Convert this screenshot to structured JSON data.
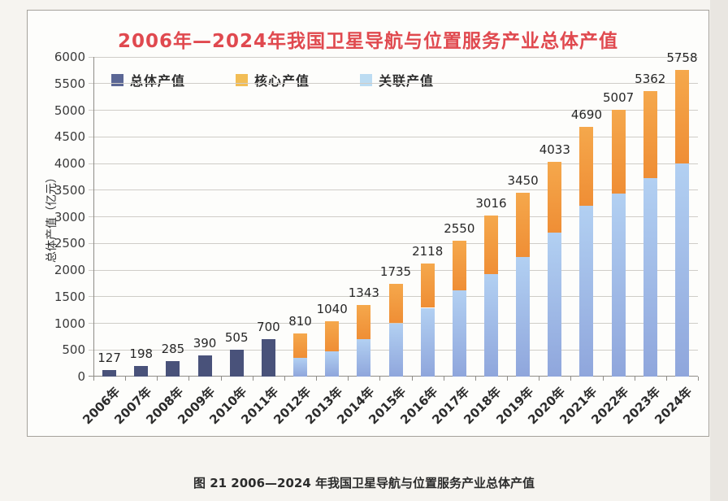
{
  "caption": "图 21  2006—2024 年我国卫星导航与位置服务产业总体产值",
  "chart_data": {
    "type": "bar",
    "subtype": "stacked",
    "title": "2006年—2024年我国卫星导航与位置服务产业总体产值",
    "ylabel": "总体产值（亿元）",
    "xlabel": "",
    "ylim": [
      0,
      6000
    ],
    "ytick_step": 500,
    "grid": "horizontal",
    "legend_position": "top-left-inside",
    "categories": [
      "2006年",
      "2007年",
      "2008年",
      "2009年",
      "2010年",
      "2011年",
      "2012年",
      "2013年",
      "2014年",
      "2015年",
      "2016年",
      "2017年",
      "2018年",
      "2019年",
      "2020年",
      "2021年",
      "2022年",
      "2023年",
      "2024年"
    ],
    "totals": [
      127,
      198,
      285,
      390,
      505,
      700,
      810,
      1040,
      1343,
      1735,
      2118,
      2550,
      3016,
      3450,
      4033,
      4690,
      5007,
      5362,
      5758
    ],
    "series": [
      {
        "name": "总体产值",
        "color": "#49527a",
        "values": [
          127,
          198,
          285,
          390,
          505,
          700,
          null,
          null,
          null,
          null,
          null,
          null,
          null,
          null,
          null,
          null,
          null,
          null,
          null
        ]
      },
      {
        "name": "关联产值",
        "color": "#9db8e8",
        "values": [
          null,
          null,
          null,
          null,
          null,
          null,
          350,
          480,
          700,
          1000,
          1290,
          1620,
          1920,
          2250,
          2700,
          3200,
          3440,
          3720,
          4000
        ]
      },
      {
        "name": "核心产值",
        "color": "#f39a41",
        "values": [
          null,
          null,
          null,
          null,
          null,
          null,
          460,
          560,
          643,
          735,
          828,
          930,
          1096,
          1200,
          1333,
          1490,
          1567,
          1642,
          1758
        ]
      }
    ],
    "legend": [
      {
        "label": "总体产值",
        "color": "#5b6795"
      },
      {
        "label": "核心产值",
        "color": "#f2bd55"
      },
      {
        "label": "关联产值",
        "color": "#bcdcf2"
      }
    ],
    "colors": {
      "title": "#e0494f",
      "axis": "#8f8d88",
      "grid": "#cfcdc8",
      "label_text": "#272727"
    }
  }
}
